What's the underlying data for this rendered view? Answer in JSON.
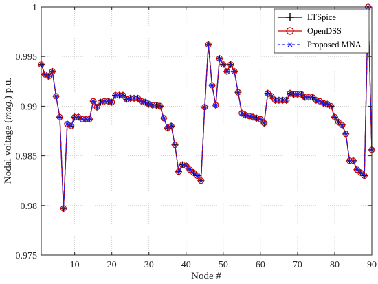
{
  "chart_data": {
    "type": "line",
    "title": "",
    "xlabel": "Node #",
    "ylabel_parts": [
      "Nodal voltage (",
      "mag.",
      ") p.u."
    ],
    "xlim": [
      1,
      90
    ],
    "ylim": [
      0.975,
      1.0
    ],
    "xticks": [
      10,
      20,
      30,
      40,
      50,
      60,
      70,
      80,
      90
    ],
    "xtick_labels": [
      "10",
      "20",
      "30",
      "40",
      "50",
      "60",
      "70",
      "80",
      "90"
    ],
    "yticks": [
      0.975,
      0.98,
      0.985,
      0.99,
      0.995,
      1.0
    ],
    "ytick_labels": [
      "0.975",
      "0.98",
      "0.985",
      "0.99",
      "0.995",
      "1"
    ],
    "grid": true,
    "legend_position": "top-right",
    "x": [
      1,
      2,
      3,
      4,
      5,
      6,
      7,
      8,
      9,
      10,
      11,
      12,
      13,
      14,
      15,
      16,
      17,
      18,
      19,
      20,
      21,
      22,
      23,
      24,
      25,
      26,
      27,
      28,
      29,
      30,
      31,
      32,
      33,
      34,
      35,
      36,
      37,
      38,
      39,
      40,
      41,
      42,
      43,
      44,
      45,
      46,
      47,
      48,
      49,
      50,
      51,
      52,
      53,
      54,
      55,
      56,
      57,
      58,
      59,
      60,
      61,
      62,
      63,
      64,
      65,
      66,
      67,
      68,
      69,
      70,
      71,
      72,
      73,
      74,
      75,
      76,
      77,
      78,
      79,
      80,
      81,
      82,
      83,
      84,
      85,
      86,
      87,
      88,
      89,
      90
    ],
    "values": [
      0.9942,
      0.9932,
      0.993,
      0.9935,
      0.991,
      0.9889,
      0.9797,
      0.9882,
      0.988,
      0.9889,
      0.9889,
      0.9887,
      0.9887,
      0.9887,
      0.9905,
      0.9899,
      0.9904,
      0.9905,
      0.9905,
      0.9904,
      0.9911,
      0.9911,
      0.9911,
      0.9907,
      0.9908,
      0.9908,
      0.9908,
      0.9905,
      0.9904,
      0.9902,
      0.9901,
      0.9901,
      0.99,
      0.9888,
      0.9878,
      0.988,
      0.9861,
      0.9834,
      0.9841,
      0.984,
      0.9836,
      0.9833,
      0.983,
      0.9825,
      0.9899,
      0.9962,
      0.9921,
      0.9901,
      0.9948,
      0.9942,
      0.9935,
      0.9942,
      0.9935,
      0.9914,
      0.9893,
      0.9891,
      0.989,
      0.9889,
      0.9888,
      0.9887,
      0.9883,
      0.9913,
      0.991,
      0.9906,
      0.9906,
      0.9906,
      0.9906,
      0.9913,
      0.9912,
      0.9912,
      0.9912,
      0.9909,
      0.9909,
      0.9909,
      0.9906,
      0.9905,
      0.9903,
      0.9902,
      0.99,
      0.9889,
      0.9884,
      0.9881,
      0.9872,
      0.9845,
      0.9845,
      0.9836,
      0.9833,
      0.983,
      1.0,
      0.9856
    ],
    "series": [
      {
        "name": "LTSpice",
        "color": "#000000",
        "marker": "plus",
        "dash": "solid"
      },
      {
        "name": "OpenDSS",
        "color": "#cc0000",
        "marker": "circle",
        "dash": "solid"
      },
      {
        "name": "Proposed MNA",
        "color": "#1a1aff",
        "marker": "x",
        "dash": "dashed"
      }
    ]
  }
}
